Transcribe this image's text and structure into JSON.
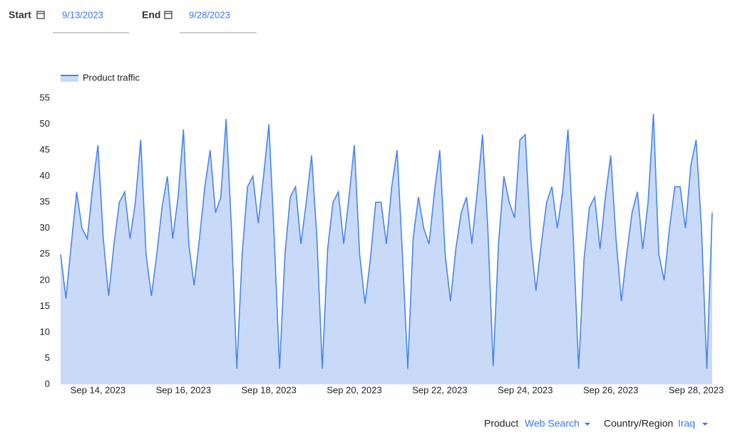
{
  "controls": {
    "start_label": "Start",
    "start_date": "9/13/2023",
    "end_label": "End",
    "end_date": "9/28/2023"
  },
  "chart_data": {
    "type": "area",
    "categories": [
      null,
      null,
      null,
      null,
      null,
      null,
      null,
      "Sep 14, 2023",
      null,
      null,
      null,
      null,
      null,
      null,
      null,
      null,
      null,
      null,
      null,
      null,
      null,
      null,
      null,
      "Sep 16, 2023",
      null,
      null,
      null,
      null,
      null,
      null,
      null,
      null,
      null,
      null,
      null,
      null,
      null,
      null,
      null,
      "Sep 18, 2023",
      null,
      null,
      null,
      null,
      null,
      null,
      null,
      null,
      null,
      null,
      null,
      null,
      null,
      null,
      null,
      "Sep 20, 2023",
      null,
      null,
      null,
      null,
      null,
      null,
      null,
      null,
      null,
      null,
      null,
      null,
      null,
      null,
      null,
      "Sep 22, 2023",
      null,
      null,
      null,
      null,
      null,
      null,
      null,
      null,
      null,
      null,
      null,
      null,
      null,
      null,
      null,
      "Sep 24, 2023",
      null,
      null,
      null,
      null,
      null,
      null,
      null,
      null,
      null,
      null,
      null,
      null,
      null,
      null,
      null,
      "Sep 26, 2023",
      null,
      null,
      null,
      null,
      null,
      null,
      null,
      null,
      null,
      null,
      null,
      null,
      null,
      null,
      null,
      "Sep 28, 2023",
      null,
      null,
      null
    ],
    "series": [
      {
        "name": "Product traffic",
        "color": "#4a86e8",
        "fill": "#c9daf8",
        "values": [
          25,
          16.5,
          27,
          37,
          30,
          28,
          38,
          46,
          28,
          17,
          27,
          35,
          37,
          28,
          35,
          47,
          25,
          17,
          25,
          34,
          40,
          28,
          36,
          49,
          27,
          19,
          28,
          38,
          45,
          33,
          36,
          51,
          30,
          3,
          25,
          38,
          40,
          31,
          40,
          50,
          28,
          3,
          25,
          36,
          38,
          27,
          35,
          44,
          28,
          3,
          26,
          35,
          37,
          27,
          36,
          46,
          25,
          15.5,
          24,
          35,
          35,
          27,
          38,
          45,
          25,
          3,
          28,
          36,
          30,
          27,
          37,
          45,
          25,
          16,
          26,
          33,
          36,
          27,
          37,
          48,
          30,
          3.5,
          27,
          40,
          35,
          32,
          47,
          48,
          28,
          18,
          27,
          35,
          38,
          30,
          37,
          49,
          28,
          3,
          24,
          34,
          36,
          26,
          36,
          44,
          28,
          16,
          25,
          33,
          37,
          26,
          35,
          52,
          25,
          20,
          30,
          38,
          38,
          30,
          42,
          47,
          30,
          3,
          33
        ]
      }
    ],
    "ylim": [
      0,
      55
    ],
    "yticks": [
      0,
      5,
      10,
      15,
      20,
      25,
      30,
      35,
      40,
      45,
      50,
      55
    ],
    "grid": false,
    "legend": "top-left"
  },
  "filters": {
    "product_label": "Product",
    "product": "Web Search",
    "region_label": "Country/Region",
    "region": "Iraq"
  }
}
